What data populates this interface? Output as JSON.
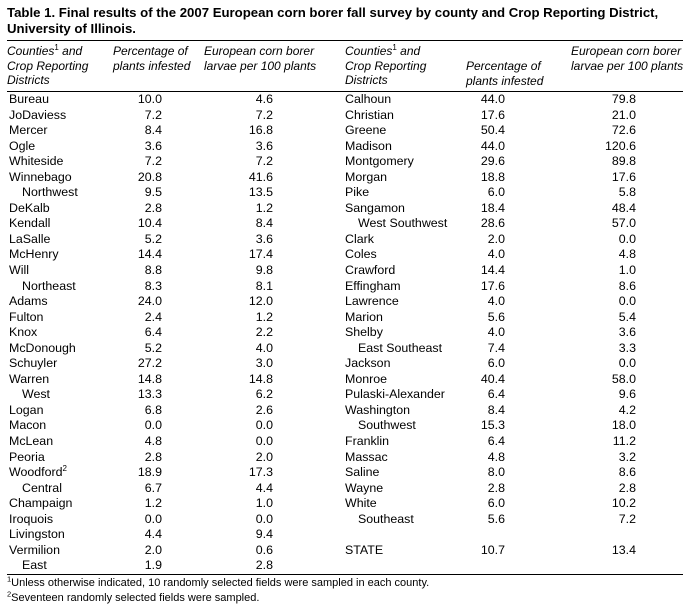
{
  "title": "Table 1. Final results of the 2007 European corn borer fall survey by county and Crop Reporting District, University of Illinois.",
  "headers": {
    "left": {
      "county": "Counties",
      "county_sup": "1",
      "county_rest": " and Crop Reporting Districts",
      "pct": "Percentage of plants infested",
      "larvae": "European corn borer larvae per 100 plants"
    },
    "right": {
      "county": "Counties",
      "county_sup": "1",
      "county_rest": " and Crop Reporting Districts",
      "pct": "Percentage of plants infested",
      "larvae": "European corn borer larvae per 100 plants"
    }
  },
  "left_rows": [
    {
      "name": "Bureau",
      "pct": "10.0",
      "larvae": "4.6"
    },
    {
      "name": "JoDaviess",
      "pct": "7.2",
      "larvae": "7.2"
    },
    {
      "name": "Mercer",
      "pct": "8.4",
      "larvae": "16.8"
    },
    {
      "name": "Ogle",
      "pct": "3.6",
      "larvae": "3.6"
    },
    {
      "name": "Whiteside",
      "pct": "7.2",
      "larvae": "7.2"
    },
    {
      "name": "Winnebago",
      "pct": "20.8",
      "larvae": "41.6"
    },
    {
      "name": "Northwest",
      "pct": "9.5",
      "larvae": "13.5",
      "district": true
    },
    {
      "name": "DeKalb",
      "pct": "2.8",
      "larvae": "1.2"
    },
    {
      "name": "Kendall",
      "pct": "10.4",
      "larvae": "8.4"
    },
    {
      "name": "LaSalle",
      "pct": "5.2",
      "larvae": "3.6"
    },
    {
      "name": "McHenry",
      "pct": "14.4",
      "larvae": "17.4"
    },
    {
      "name": "Will",
      "pct": "8.8",
      "larvae": "9.8"
    },
    {
      "name": "Northeast",
      "pct": "8.3",
      "larvae": "8.1",
      "district": true
    },
    {
      "name": "Adams",
      "pct": "24.0",
      "larvae": "12.0"
    },
    {
      "name": "Fulton",
      "pct": "2.4",
      "larvae": "1.2"
    },
    {
      "name": "Knox",
      "pct": "6.4",
      "larvae": "2.2"
    },
    {
      "name": "McDonough",
      "pct": "5.2",
      "larvae": "4.0"
    },
    {
      "name": "Schuyler",
      "pct": "27.2",
      "larvae": "3.0"
    },
    {
      "name": "Warren",
      "pct": "14.8",
      "larvae": "14.8"
    },
    {
      "name": "West",
      "pct": "13.3",
      "larvae": "6.2",
      "district": true
    },
    {
      "name": "Logan",
      "pct": "6.8",
      "larvae": "2.6"
    },
    {
      "name": "Macon",
      "pct": "0.0",
      "larvae": "0.0"
    },
    {
      "name": "McLean",
      "pct": "4.8",
      "larvae": "0.0"
    },
    {
      "name": "Peoria",
      "pct": "2.8",
      "larvae": "2.0"
    },
    {
      "name": "Woodford",
      "sup": "2",
      "pct": "18.9",
      "larvae": "17.3"
    },
    {
      "name": "Central",
      "pct": "6.7",
      "larvae": "4.4",
      "district": true
    },
    {
      "name": "Champaign",
      "pct": "1.2",
      "larvae": "1.0"
    },
    {
      "name": "Iroquois",
      "pct": "0.0",
      "larvae": "0.0"
    },
    {
      "name": "Livingston",
      "pct": "4.4",
      "larvae": "9.4"
    },
    {
      "name": "Vermilion",
      "pct": "2.0",
      "larvae": "0.6"
    },
    {
      "name": "East",
      "pct": "1.9",
      "larvae": "2.8",
      "district": true
    }
  ],
  "right_rows": [
    {
      "name": "Calhoun",
      "pct": "44.0",
      "larvae": "79.8"
    },
    {
      "name": "Christian",
      "pct": "17.6",
      "larvae": "21.0"
    },
    {
      "name": "Greene",
      "pct": "50.4",
      "larvae": "72.6"
    },
    {
      "name": "Madison",
      "pct": "44.0",
      "larvae": "120.6"
    },
    {
      "name": "Montgomery",
      "pct": "29.6",
      "larvae": "89.8"
    },
    {
      "name": "Morgan",
      "pct": "18.8",
      "larvae": "17.6"
    },
    {
      "name": "Pike",
      "pct": "6.0",
      "larvae": "5.8"
    },
    {
      "name": "Sangamon",
      "pct": "18.4",
      "larvae": "48.4"
    },
    {
      "name": "West Southwest",
      "pct": "28.6",
      "larvae": "57.0",
      "district": true
    },
    {
      "name": "Clark",
      "pct": "2.0",
      "larvae": "0.0"
    },
    {
      "name": "Coles",
      "pct": "4.0",
      "larvae": "4.8"
    },
    {
      "name": "Crawford",
      "pct": "14.4",
      "larvae": "1.0"
    },
    {
      "name": "Effingham",
      "pct": "17.6",
      "larvae": "8.6"
    },
    {
      "name": "Lawrence",
      "pct": "4.0",
      "larvae": "0.0"
    },
    {
      "name": "Marion",
      "pct": "5.6",
      "larvae": "5.4"
    },
    {
      "name": "Shelby",
      "pct": "4.0",
      "larvae": "3.6"
    },
    {
      "name": "East Southeast",
      "pct": "7.4",
      "larvae": "3.3",
      "district": true
    },
    {
      "name": "Jackson",
      "pct": "6.0",
      "larvae": "0.0"
    },
    {
      "name": "Monroe",
      "pct": "40.4",
      "larvae": "58.0"
    },
    {
      "name": "Pulaski-Alexander",
      "pct": "6.4",
      "larvae": "9.6"
    },
    {
      "name": "Washington",
      "pct": "8.4",
      "larvae": "4.2"
    },
    {
      "name": "Southwest",
      "pct": "15.3",
      "larvae": "18.0",
      "district": true
    },
    {
      "name": "Franklin",
      "pct": "6.4",
      "larvae": "11.2"
    },
    {
      "name": "Massac",
      "pct": "4.8",
      "larvae": "3.2"
    },
    {
      "name": "Saline",
      "pct": "8.0",
      "larvae": "8.6"
    },
    {
      "name": "Wayne",
      "pct": "2.8",
      "larvae": "2.8"
    },
    {
      "name": "White",
      "pct": "6.0",
      "larvae": "10.2"
    },
    {
      "name": "Southeast",
      "pct": "5.6",
      "larvae": "7.2",
      "district": true
    },
    {
      "name": "",
      "pct": "",
      "larvae": ""
    },
    {
      "name": "STATE",
      "pct": "10.7",
      "larvae": "13.4"
    }
  ],
  "footnotes": [
    {
      "sup": "1",
      "text": "Unless otherwise indicated, 10 randomly selected fields were sampled in each county."
    },
    {
      "sup": "2",
      "text": "Seventeen randomly selected fields were sampled."
    }
  ]
}
